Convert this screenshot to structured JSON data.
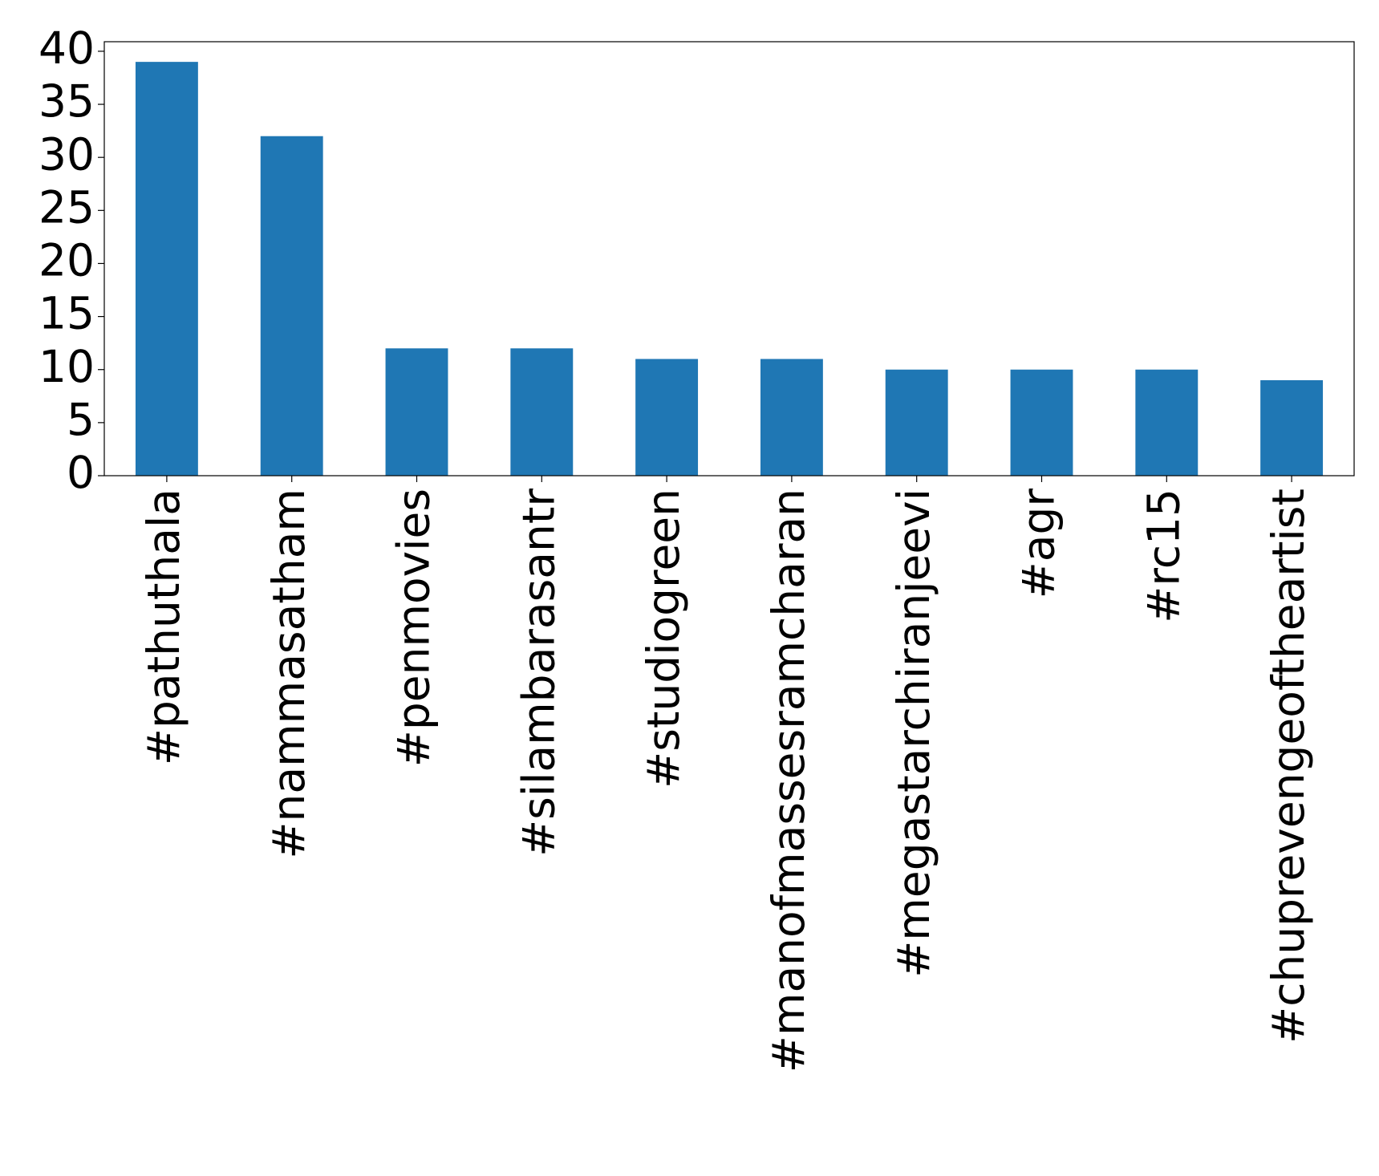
{
  "chart_data": {
    "type": "bar",
    "categories": [
      "#pathuthala",
      "#nammasatham",
      "#penmovies",
      "#silambarasantr",
      "#studiogreen",
      "#manofmassesramcharan",
      "#megastarchiranjeevi",
      "#agr",
      "#rc15",
      "#chuprevengeoftheartist"
    ],
    "values": [
      39,
      32,
      12,
      12,
      11,
      11,
      10,
      10,
      10,
      9
    ],
    "color": "#1f77b4",
    "ylim": [
      0,
      40.9
    ],
    "yticks": [
      0,
      5,
      10,
      15,
      20,
      25,
      30,
      35,
      40
    ],
    "grid": false
  }
}
